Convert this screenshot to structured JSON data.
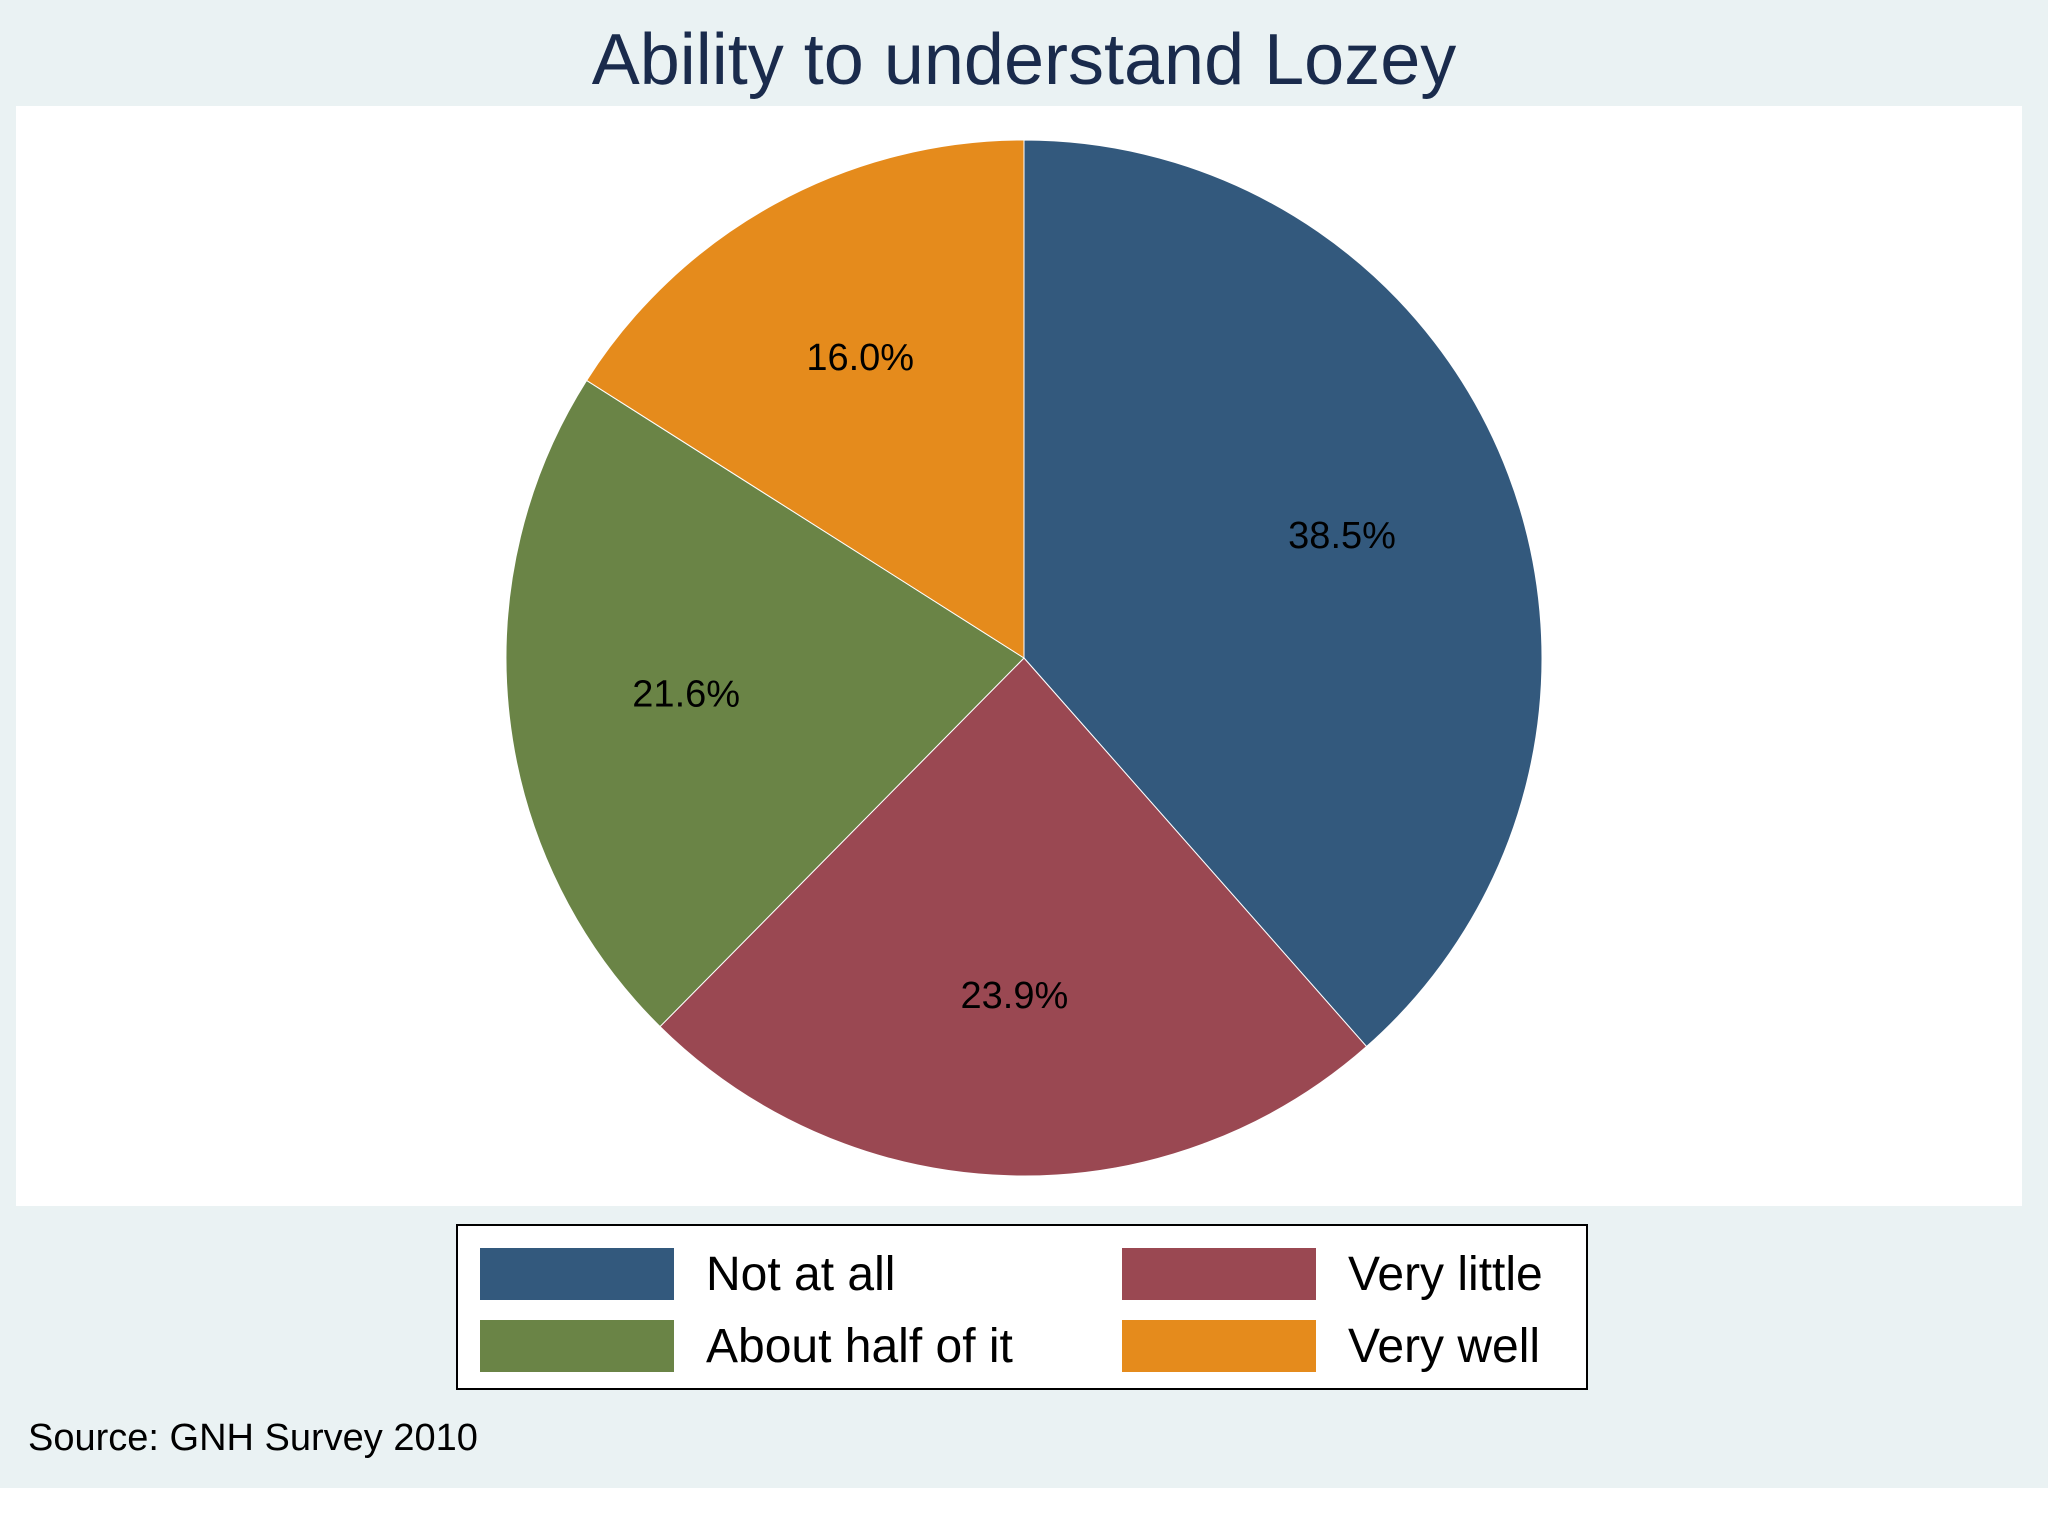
{
  "chart_data": {
    "type": "pie",
    "title": "Ability to understand Lozey",
    "categories": [
      "Not at all",
      "Very little",
      "About half of it",
      "Very well"
    ],
    "values": [
      38.5,
      23.9,
      21.6,
      16.0
    ],
    "value_labels": [
      "38.5%",
      "23.9%",
      "21.6%",
      "16.0%"
    ],
    "colors": [
      "#33597d",
      "#9a4852",
      "#6a8446",
      "#e58b1c"
    ],
    "start": "12 o'clock, clockwise",
    "legend": {
      "placement": "bottom",
      "entries": [
        {
          "label": "Not at all",
          "color": "#33597d"
        },
        {
          "label": "Very little",
          "color": "#9a4852"
        },
        {
          "label": "About half of it",
          "color": "#6a8446"
        },
        {
          "label": "Very well",
          "color": "#e58b1c"
        }
      ]
    },
    "note": "Source: GNH Survey 2010"
  }
}
